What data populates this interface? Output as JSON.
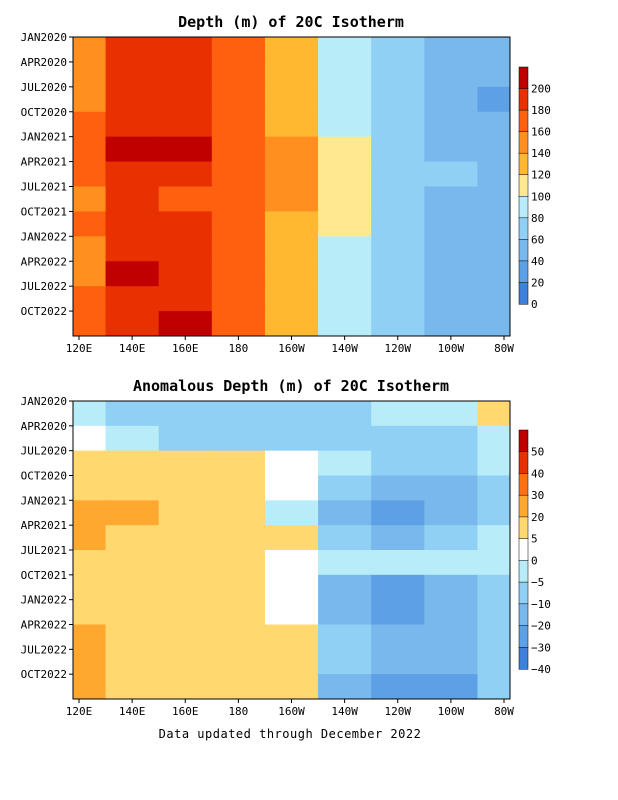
{
  "chart_data": [
    {
      "type": "heatmap",
      "title": "Depth (m) of 20C Isotherm",
      "xlabel": "",
      "ylabel": "",
      "x_ticks": [
        "120E",
        "140E",
        "160E",
        "180",
        "160W",
        "140W",
        "120W",
        "100W",
        "80W"
      ],
      "y_ticks": [
        "JAN2020",
        "APR2020",
        "JUL2020",
        "OCT2020",
        "JAN2021",
        "APR2021",
        "JUL2021",
        "OCT2021",
        "JAN2022",
        "APR2022",
        "JUL2022",
        "OCT2022"
      ],
      "colorbar_labels": [
        "200",
        "180",
        "160",
        "140",
        "120",
        "100",
        "80",
        "60",
        "40",
        "20",
        "0"
      ],
      "colorbar_levels": [
        200,
        180,
        160,
        140,
        120,
        100,
        80,
        60,
        40,
        20,
        0
      ],
      "colorbar_colors": [
        "#c00000",
        "#e83000",
        "#ff6010",
        "#ff9020",
        "#ffb830",
        "#ffe890",
        "#b8ecf8",
        "#90d0f4",
        "#78b8ec",
        "#5ea0e6",
        "#3e80dc"
      ],
      "longitudes": [
        120,
        140,
        160,
        180,
        200,
        220,
        240,
        260,
        280
      ],
      "rows": [
        {
          "date": "JAN2020",
          "values": [
            150,
            185,
            190,
            170,
            135,
            95,
            70,
            50,
            40
          ]
        },
        {
          "date": "APR2020",
          "values": [
            145,
            190,
            180,
            165,
            130,
            90,
            65,
            50,
            40
          ]
        },
        {
          "date": "JUL2020",
          "values": [
            150,
            180,
            180,
            160,
            125,
            85,
            65,
            50,
            35
          ]
        },
        {
          "date": "OCT2020",
          "values": [
            160,
            190,
            190,
            170,
            130,
            90,
            70,
            50,
            40
          ]
        },
        {
          "date": "JAN2021",
          "values": [
            165,
            205,
            200,
            175,
            140,
            100,
            70,
            55,
            40
          ]
        },
        {
          "date": "APR2021",
          "values": [
            165,
            195,
            190,
            170,
            140,
            105,
            75,
            60,
            45
          ]
        },
        {
          "date": "JUL2021",
          "values": [
            155,
            180,
            175,
            165,
            140,
            105,
            70,
            55,
            45
          ]
        },
        {
          "date": "OCT2021",
          "values": [
            165,
            185,
            185,
            165,
            135,
            100,
            70,
            55,
            45
          ]
        },
        {
          "date": "JAN2022",
          "values": [
            150,
            195,
            195,
            170,
            130,
            95,
            70,
            55,
            45
          ]
        },
        {
          "date": "APR2022",
          "values": [
            150,
            200,
            195,
            170,
            130,
            95,
            65,
            55,
            40
          ]
        },
        {
          "date": "JUL2022",
          "values": [
            160,
            190,
            190,
            175,
            135,
            95,
            65,
            50,
            40
          ]
        },
        {
          "date": "OCT2022",
          "values": [
            165,
            195,
            200,
            170,
            135,
            95,
            60,
            50,
            40
          ]
        }
      ]
    },
    {
      "type": "heatmap",
      "title": "Anomalous Depth (m) of 20C Isotherm",
      "xlabel": "",
      "ylabel": "",
      "x_ticks": [
        "120E",
        "140E",
        "160E",
        "180",
        "160W",
        "140W",
        "120W",
        "100W",
        "80W"
      ],
      "y_ticks": [
        "JAN2020",
        "APR2020",
        "JUL2020",
        "OCT2020",
        "JAN2021",
        "APR2021",
        "JUL2021",
        "OCT2021",
        "JAN2022",
        "APR2022",
        "JUL2022",
        "OCT2022"
      ],
      "colorbar_labels": [
        "50",
        "40",
        "30",
        "20",
        "5",
        "0",
        "−5",
        "−10",
        "−20",
        "−30",
        "−40"
      ],
      "colorbar_levels": [
        50,
        40,
        30,
        20,
        5,
        0,
        -5,
        -10,
        -20,
        -30,
        -40
      ],
      "colorbar_colors": [
        "#c00000",
        "#e83000",
        "#ff7010",
        "#ffa830",
        "#ffd870",
        "#ffffff",
        "#b8ecf8",
        "#90d0f4",
        "#78b8ec",
        "#5ea0e6",
        "#3e80dc"
      ],
      "longitudes": [
        120,
        140,
        160,
        180,
        200,
        220,
        240,
        260,
        280
      ],
      "rows": [
        {
          "date": "JAN2020",
          "values": [
            -5,
            -10,
            -10,
            -10,
            -10,
            -10,
            -5,
            -5,
            5
          ]
        },
        {
          "date": "APR2020",
          "values": [
            0,
            -5,
            -10,
            -10,
            -10,
            -10,
            -10,
            -10,
            -5
          ]
        },
        {
          "date": "JUL2020",
          "values": [
            5,
            10,
            5,
            5,
            0,
            -5,
            -10,
            -10,
            -5
          ]
        },
        {
          "date": "OCT2020",
          "values": [
            10,
            10,
            10,
            10,
            0,
            -10,
            -20,
            -20,
            -10
          ]
        },
        {
          "date": "JAN2021",
          "values": [
            25,
            20,
            15,
            10,
            -5,
            -20,
            -25,
            -20,
            -10
          ]
        },
        {
          "date": "APR2021",
          "values": [
            20,
            5,
            10,
            5,
            5,
            -10,
            -15,
            -10,
            -5
          ]
        },
        {
          "date": "JUL2021",
          "values": [
            15,
            10,
            5,
            10,
            0,
            -5,
            -5,
            -5,
            -5
          ]
        },
        {
          "date": "OCT2021",
          "values": [
            10,
            10,
            15,
            10,
            0,
            -20,
            -25,
            -20,
            -10
          ]
        },
        {
          "date": "JAN2022",
          "values": [
            15,
            15,
            15,
            10,
            0,
            -15,
            -25,
            -20,
            -10
          ]
        },
        {
          "date": "APR2022",
          "values": [
            20,
            15,
            15,
            10,
            5,
            -10,
            -20,
            -15,
            -10
          ]
        },
        {
          "date": "JUL2022",
          "values": [
            20,
            15,
            15,
            15,
            5,
            -10,
            -20,
            -20,
            -10
          ]
        },
        {
          "date": "OCT2022",
          "values": [
            25,
            15,
            15,
            15,
            5,
            -15,
            -25,
            -25,
            -10
          ]
        }
      ]
    }
  ],
  "footer": "Data updated through December 2022"
}
